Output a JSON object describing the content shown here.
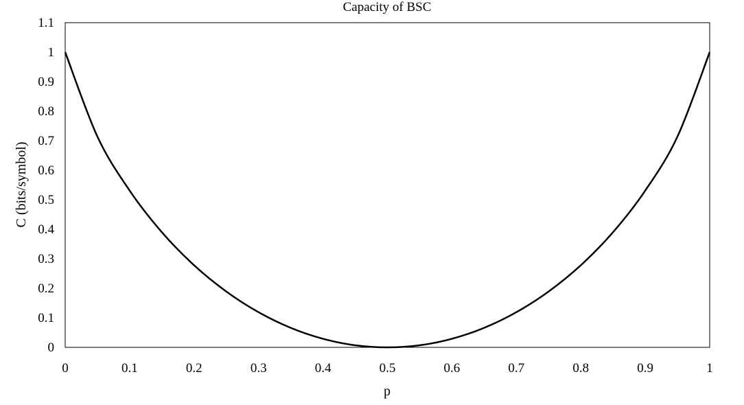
{
  "chart_data": {
    "type": "line",
    "title": "Capacity of BSC",
    "xlabel": "p",
    "ylabel": "C (bits/symbol)",
    "xlim": [
      0,
      1
    ],
    "ylim": [
      0,
      1.1
    ],
    "x_ticks": [
      "0",
      "0.1",
      "0.2",
      "0.3",
      "0.4",
      "0.5",
      "0.6",
      "0.7",
      "0.8",
      "0.9",
      "1"
    ],
    "y_ticks": [
      "0",
      "0.1",
      "0.2",
      "0.3",
      "0.4",
      "0.5",
      "0.6",
      "0.7",
      "0.8",
      "0.9",
      "1",
      "1.1"
    ],
    "grid": false,
    "legend": "none",
    "series": [
      {
        "color": "#000000",
        "x": [
          0,
          0.05,
          0.1,
          0.15,
          0.2,
          0.25,
          0.3,
          0.35,
          0.4,
          0.45,
          0.5,
          0.55,
          0.6,
          0.65,
          0.7,
          0.75,
          0.8,
          0.85,
          0.9,
          0.95,
          1
        ],
        "y": [
          1,
          0.714,
          0.531,
          0.39,
          0.278,
          0.189,
          0.119,
          0.066,
          0.029,
          0.007,
          0,
          0.007,
          0.029,
          0.066,
          0.119,
          0.189,
          0.278,
          0.39,
          0.531,
          0.714,
          1
        ]
      }
    ]
  }
}
